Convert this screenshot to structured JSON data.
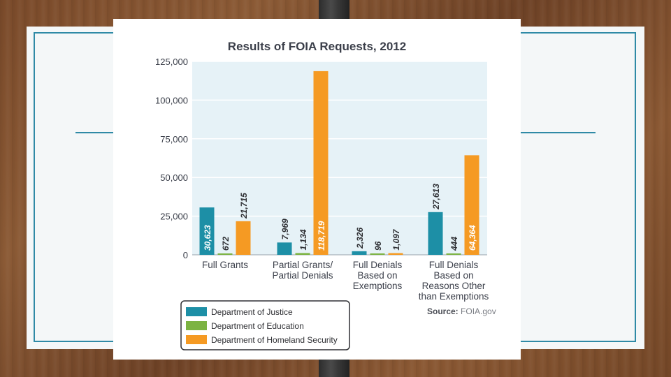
{
  "colors": {
    "justice": "#1d8fa6",
    "education": "#7cb342",
    "homeland": "#f59a23",
    "plot_bg": "#e6f2f7",
    "accent": "#2f8aa6"
  },
  "footer": {
    "source_label": "Source:",
    "source_value": "FOIA.gov"
  },
  "chart_data": {
    "type": "bar",
    "title": "Results of FOIA Requests, 2012",
    "categories": [
      [
        "Full Grants"
      ],
      [
        "Partial Grants/",
        "Partial Denials"
      ],
      [
        "Full Denials",
        "Based on",
        "Exemptions"
      ],
      [
        "Full Denials",
        "Based on",
        "Reasons Other",
        "than Exemptions"
      ]
    ],
    "series": [
      {
        "name": "Department of Justice",
        "color_key": "justice",
        "values": [
          30623,
          7969,
          2326,
          27613
        ],
        "labels": [
          "30,623",
          "7,969",
          "2,326",
          "27,613"
        ]
      },
      {
        "name": "Department of Education",
        "color_key": "education",
        "values": [
          672,
          1134,
          96,
          444
        ],
        "labels": [
          "672",
          "1,134",
          "96",
          "444"
        ]
      },
      {
        "name": "Department of Homeland Security",
        "color_key": "homeland",
        "values": [
          21715,
          118719,
          1097,
          64364
        ],
        "labels": [
          "21,715",
          "118,719",
          "1,097",
          "64,364"
        ]
      }
    ],
    "ylim": [
      0,
      125000
    ],
    "yticks": [
      0,
      25000,
      50000,
      75000,
      100000,
      125000
    ],
    "ytick_labels": [
      "0",
      "25,000",
      "50,000",
      "75,000",
      "100,000",
      "125,000"
    ],
    "xlabel": "",
    "ylabel": "",
    "grid": true,
    "legend_position": "bottom-left"
  }
}
